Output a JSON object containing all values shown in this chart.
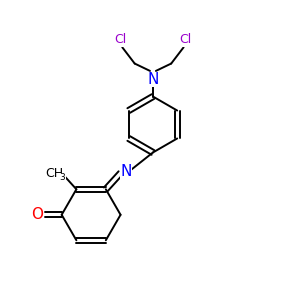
{
  "bg_color": "#ffffff",
  "bond_color": "#000000",
  "N_color": "#0000ff",
  "O_color": "#ff0000",
  "Cl_color": "#9900cc",
  "figsize": [
    3.0,
    3.0
  ],
  "dpi": 100,
  "lw": 1.4,
  "xlim": [
    0,
    10
  ],
  "ylim": [
    0,
    10
  ]
}
